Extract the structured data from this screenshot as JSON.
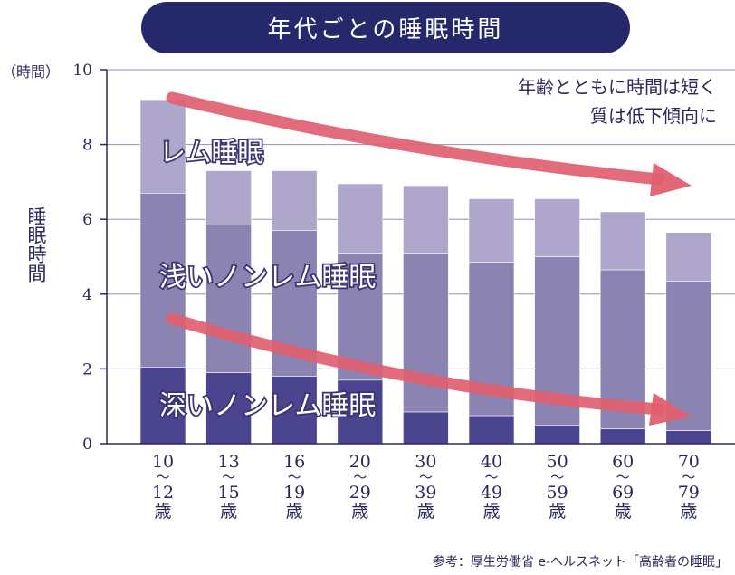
{
  "header": {
    "title": "年代ごとの睡眠時間"
  },
  "y_unit": "（時間）",
  "y_label": "睡眠時間",
  "note": {
    "line1": "年齢とともに時間は短く",
    "line2": "質は低下傾向に"
  },
  "source": "参考：厚生労働省 e-ヘルスネット「高齢者の睡眠」",
  "colors": {
    "title_bg": "#25286b",
    "deep": "#4b4590",
    "light_sleep": "#8b83b2",
    "rem": "#aea6cb",
    "arrow": "#e06070",
    "axis": "#2a2a5a",
    "grid": "#8f8fb3"
  },
  "chart_data": {
    "type": "bar",
    "stacked": true,
    "categories": [
      {
        "top": "10",
        "bottom": "12",
        "suffix": "歳"
      },
      {
        "top": "13",
        "bottom": "15",
        "suffix": "歳"
      },
      {
        "top": "16",
        "bottom": "19",
        "suffix": "歳"
      },
      {
        "top": "20",
        "bottom": "29",
        "suffix": "歳"
      },
      {
        "top": "30",
        "bottom": "39",
        "suffix": "歳"
      },
      {
        "top": "40",
        "bottom": "49",
        "suffix": "歳"
      },
      {
        "top": "50",
        "bottom": "59",
        "suffix": "歳"
      },
      {
        "top": "60",
        "bottom": "69",
        "suffix": "歳"
      },
      {
        "top": "70",
        "bottom": "79",
        "suffix": "歳"
      }
    ],
    "series": [
      {
        "name": "深いノンレム睡眠",
        "values": [
          2.05,
          1.9,
          1.8,
          1.7,
          0.85,
          0.75,
          0.5,
          0.4,
          0.35
        ]
      },
      {
        "name": "浅いノンレム睡眠",
        "values": [
          4.65,
          3.95,
          3.9,
          3.4,
          4.25,
          4.1,
          4.5,
          4.25,
          4.0
        ]
      },
      {
        "name": "レム睡眠",
        "values": [
          2.5,
          1.45,
          1.6,
          1.85,
          1.8,
          1.7,
          1.55,
          1.55,
          1.3
        ]
      }
    ],
    "y_ticks": [
      "0",
      "2",
      "4",
      "6",
      "8",
      "10"
    ],
    "ylim": [
      0,
      10
    ],
    "grid": true
  }
}
